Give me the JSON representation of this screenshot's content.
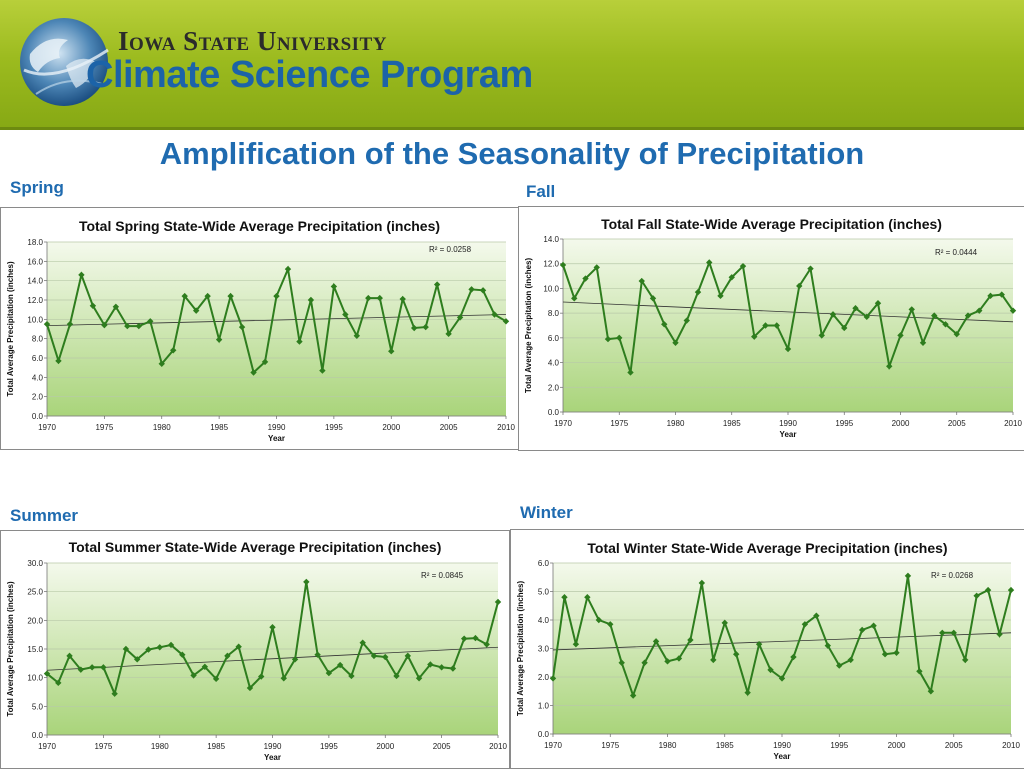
{
  "header": {
    "university": "Iowa State University",
    "program": "Climate Science Program"
  },
  "title": "Amplification of the Seasonality of Precipitation",
  "colors": {
    "series": "#2e7d1e",
    "title_blue": "#1f6bb0",
    "plot_top": "#f4f9ec",
    "plot_bottom": "#a9d47a"
  },
  "chart_data": [
    {
      "type": "line",
      "season_label": "Spring",
      "title": "Total Spring State-Wide Average Precipitation (inches)",
      "xlabel": "Year",
      "ylabel": "Total Average Precipitation (inches)",
      "r2_label": "R² = 0.0258",
      "xlim": [
        1970,
        2010
      ],
      "ylim": [
        0,
        18
      ],
      "ytick_step": 2,
      "ytick_decimals": 1,
      "xticks": [
        1970,
        1975,
        1980,
        1985,
        1990,
        1995,
        2000,
        2005,
        2010
      ],
      "grid": true,
      "trendline": [
        9.35,
        10.5
      ],
      "x": [
        1970,
        1971,
        1972,
        1973,
        1974,
        1975,
        1976,
        1977,
        1978,
        1979,
        1980,
        1981,
        1982,
        1983,
        1984,
        1985,
        1986,
        1987,
        1988,
        1989,
        1990,
        1991,
        1992,
        1993,
        1994,
        1995,
        1996,
        1997,
        1998,
        1999,
        2000,
        2001,
        2002,
        2003,
        2004,
        2005,
        2006,
        2007,
        2008,
        2009,
        2010
      ],
      "values": [
        9.5,
        5.7,
        9.5,
        14.6,
        11.4,
        9.4,
        11.3,
        9.3,
        9.3,
        9.8,
        5.4,
        6.8,
        12.4,
        10.9,
        12.4,
        7.9,
        12.4,
        9.2,
        4.5,
        5.6,
        12.4,
        15.2,
        7.7,
        12.0,
        4.7,
        13.4,
        10.5,
        8.3,
        12.2,
        12.2,
        6.7,
        12.1,
        9.1,
        9.2,
        13.6,
        8.5,
        10.2,
        13.1,
        13.0,
        10.5,
        9.8
      ]
    },
    {
      "type": "line",
      "season_label": "Fall",
      "title": "Total Fall State-Wide Average Precipitation (inches)",
      "xlabel": "Year",
      "ylabel": "Total Average Precipitation (inches)",
      "r2_label": "R² = 0.0444",
      "xlim": [
        1970,
        2010
      ],
      "ylim": [
        0,
        14
      ],
      "ytick_step": 2,
      "ytick_decimals": 1,
      "xticks": [
        1970,
        1975,
        1980,
        1985,
        1990,
        1995,
        2000,
        2005,
        2010
      ],
      "grid": true,
      "trendline": [
        8.9,
        7.3
      ],
      "x": [
        1970,
        1971,
        1972,
        1973,
        1974,
        1975,
        1976,
        1977,
        1978,
        1979,
        1980,
        1981,
        1982,
        1983,
        1984,
        1985,
        1986,
        1987,
        1988,
        1989,
        1990,
        1991,
        1992,
        1993,
        1994,
        1995,
        1996,
        1997,
        1998,
        1999,
        2000,
        2001,
        2002,
        2003,
        2004,
        2005,
        2006,
        2007,
        2008,
        2009,
        2010
      ],
      "values": [
        11.9,
        9.2,
        10.8,
        11.7,
        5.9,
        6.0,
        3.2,
        10.6,
        9.2,
        7.1,
        5.6,
        7.4,
        9.7,
        12.1,
        9.4,
        10.9,
        11.8,
        6.1,
        7.0,
        7.0,
        5.1,
        10.2,
        11.6,
        6.2,
        7.9,
        6.8,
        8.4,
        7.7,
        8.8,
        3.7,
        6.2,
        8.3,
        5.6,
        7.8,
        7.1,
        6.3,
        7.8,
        8.2,
        9.4,
        9.5,
        8.2
      ]
    },
    {
      "type": "line",
      "season_label": "Summer",
      "title": "Total Summer State-Wide Average Precipitation (inches)",
      "xlabel": "Year",
      "ylabel": "Total Average Precipitation (inches)",
      "r2_label": "R² = 0.0845",
      "xlim": [
        1970,
        2010
      ],
      "ylim": [
        0,
        30
      ],
      "ytick_step": 5,
      "ytick_decimals": 1,
      "xticks": [
        1970,
        1975,
        1980,
        1985,
        1990,
        1995,
        2000,
        2005,
        2010
      ],
      "grid": true,
      "trendline": [
        11.3,
        15.3
      ],
      "x": [
        1970,
        1971,
        1972,
        1973,
        1974,
        1975,
        1976,
        1977,
        1978,
        1979,
        1980,
        1981,
        1982,
        1983,
        1984,
        1985,
        1986,
        1987,
        1988,
        1989,
        1990,
        1991,
        1992,
        1993,
        1994,
        1995,
        1996,
        1997,
        1998,
        1999,
        2000,
        2001,
        2002,
        2003,
        2004,
        2005,
        2006,
        2007,
        2008,
        2009,
        2010
      ],
      "values": [
        10.7,
        9.1,
        13.8,
        11.4,
        11.8,
        11.8,
        7.2,
        15.0,
        13.2,
        14.9,
        15.3,
        15.7,
        14.0,
        10.4,
        11.9,
        9.8,
        13.8,
        15.4,
        8.2,
        10.2,
        18.8,
        9.9,
        13.2,
        26.7,
        14.0,
        10.8,
        12.2,
        10.3,
        16.1,
        13.8,
        13.6,
        10.3,
        13.8,
        9.9,
        12.3,
        11.8,
        11.6,
        16.8,
        16.9,
        15.8,
        23.2
      ]
    },
    {
      "type": "line",
      "season_label": "Winter",
      "title": "Total Winter State-Wide Average Precipitation (inches)",
      "xlabel": "Year",
      "ylabel": "Total Average Precipitation (inches)",
      "r2_label": "R² = 0.0268",
      "xlim": [
        1970,
        2010
      ],
      "ylim": [
        0,
        6
      ],
      "ytick_step": 1,
      "ytick_decimals": 1,
      "xticks": [
        1970,
        1975,
        1980,
        1985,
        1990,
        1995,
        2000,
        2005,
        2010
      ],
      "grid": true,
      "trendline": [
        2.95,
        3.55
      ],
      "x": [
        1970,
        1971,
        1972,
        1973,
        1974,
        1975,
        1976,
        1977,
        1978,
        1979,
        1980,
        1981,
        1982,
        1983,
        1984,
        1985,
        1986,
        1987,
        1988,
        1989,
        1990,
        1991,
        1992,
        1993,
        1994,
        1995,
        1996,
        1997,
        1998,
        1999,
        2000,
        2001,
        2002,
        2003,
        2004,
        2005,
        2006,
        2007,
        2008,
        2009,
        2010
      ],
      "values": [
        1.95,
        4.8,
        3.15,
        4.8,
        4.0,
        3.85,
        2.5,
        1.35,
        2.5,
        3.25,
        2.55,
        2.65,
        3.3,
        5.3,
        2.6,
        3.9,
        2.8,
        1.45,
        3.15,
        2.25,
        1.95,
        2.7,
        3.85,
        4.15,
        3.1,
        2.4,
        2.6,
        3.65,
        3.8,
        2.8,
        2.85,
        5.55,
        2.2,
        1.5,
        3.55,
        3.55,
        2.6,
        4.85,
        5.05,
        3.5,
        5.05
      ]
    }
  ]
}
